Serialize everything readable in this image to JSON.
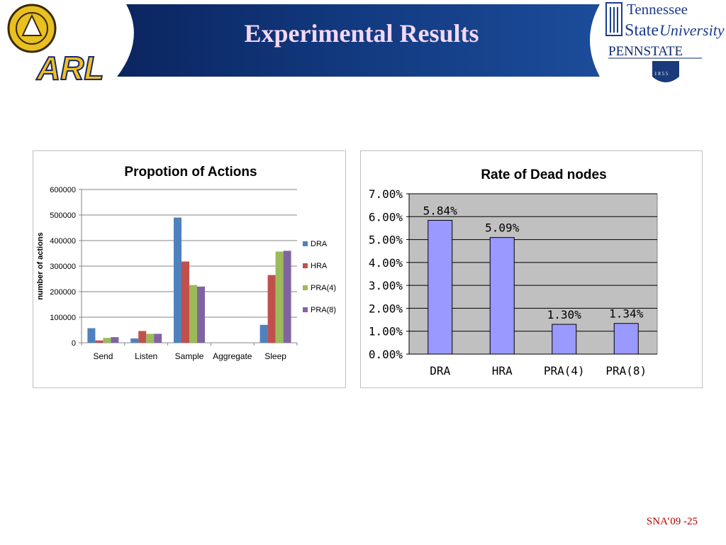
{
  "header": {
    "title": "Experimental Results",
    "logo_left_text": "ARL",
    "logo_right_line1": "Tennessee",
    "logo_right_line2": "State",
    "logo_right_line3": "University",
    "logo_right_line4": "PENNSTATE",
    "logo_right_seal": "1 8 5 5"
  },
  "footer": {
    "page_label": "SNA’09 -25"
  },
  "colors": {
    "banner_dark": "#0b2560",
    "banner_light": "#1c4c9a",
    "title": "#f4d7f4",
    "footer": "#b00000",
    "chart2_bar": "#9999ff",
    "chart2_plot_bg": "#c0c0c0"
  },
  "chart_data": [
    {
      "type": "bar",
      "title": "Propotion of Actions",
      "xlabel": "",
      "ylabel": "number of actions",
      "categories": [
        "Send",
        "Listen",
        "Sample",
        "Aggregate",
        "Sleep"
      ],
      "ylim": [
        0,
        600000
      ],
      "yticks": [
        "0",
        "100000",
        "200000",
        "300000",
        "400000",
        "500000",
        "600000"
      ],
      "grid": true,
      "legend": "right",
      "series": [
        {
          "name": "DRA",
          "color": "#4f81bd",
          "values": [
            57000,
            17000,
            490000,
            0,
            70000
          ]
        },
        {
          "name": "HRA",
          "color": "#c0504d",
          "values": [
            9000,
            46000,
            318000,
            0,
            265000
          ]
        },
        {
          "name": "PRA(4)",
          "color": "#9bbb59",
          "values": [
            19000,
            35000,
            226000,
            0,
            357000
          ]
        },
        {
          "name": "PRA(8)",
          "color": "#8064a2",
          "values": [
            22000,
            35000,
            220000,
            0,
            360000
          ]
        }
      ]
    },
    {
      "type": "bar",
      "title": "Rate of Dead nodes",
      "xlabel": "",
      "ylabel": "",
      "categories": [
        "DRA",
        "HRA",
        "PRA(4)",
        "PRA(8)"
      ],
      "values": [
        5.84,
        5.09,
        1.3,
        1.34
      ],
      "data_labels": [
        "5.84%",
        "5.09%",
        "1.30%",
        "1.34%"
      ],
      "ylim": [
        0,
        7
      ],
      "yticks": [
        "0.00%",
        "1.00%",
        "2.00%",
        "3.00%",
        "4.00%",
        "5.00%",
        "6.00%",
        "7.00%"
      ],
      "grid": true,
      "legend": "none"
    }
  ]
}
